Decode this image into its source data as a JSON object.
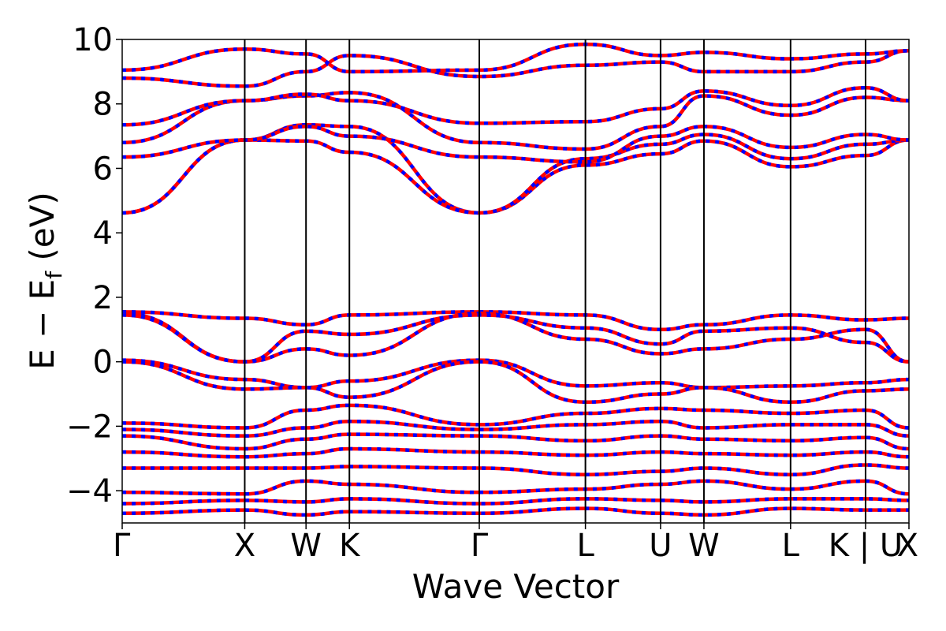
{
  "chart_data": {
    "type": "line",
    "title": "",
    "xlabel": "Wave Vector",
    "ylabel_main": "E − E",
    "ylabel_sub": "f",
    "ylabel_unit": " (eV)",
    "ylim": [
      -5,
      10
    ],
    "yticks": [
      -4,
      -2,
      0,
      2,
      4,
      6,
      8,
      10
    ],
    "ytick_labels": [
      "−4",
      "−2",
      "0",
      "2",
      "4",
      "6",
      "8",
      "10"
    ],
    "grid": false,
    "legend": "none",
    "colors": {
      "primary": "#ff0000",
      "secondary": "#0000ff",
      "frame": "#000000"
    },
    "kpath": [
      {
        "label": "Γ",
        "x": 0.0
      },
      {
        "label": "X",
        "x": 1.0
      },
      {
        "label": "W",
        "x": 1.5
      },
      {
        "label": "K",
        "x": 1.854
      },
      {
        "label": "Γ",
        "x": 2.914
      },
      {
        "label": "L",
        "x": 3.78
      },
      {
        "label": "U",
        "x": 4.393
      },
      {
        "label": "W",
        "x": 4.747
      },
      {
        "label": "L",
        "x": 5.454
      },
      {
        "label": "K | U",
        "x": 6.066
      },
      {
        "label": "X",
        "x": 6.42
      }
    ],
    "series": [
      {
        "values": [
          [
            0,
            4.62
          ],
          [
            1,
            6.88
          ],
          [
            1.5,
            7.35
          ],
          [
            1.854,
            7.3
          ],
          [
            2.914,
            4.62
          ],
          [
            3.78,
            6.1
          ],
          [
            4.393,
            6.45
          ],
          [
            4.747,
            6.85
          ],
          [
            5.454,
            6.05
          ],
          [
            6.066,
            6.4
          ],
          [
            6.42,
            6.88
          ]
        ]
      },
      {
        "values": [
          [
            0,
            4.62
          ],
          [
            1,
            6.88
          ],
          [
            1.5,
            6.85
          ],
          [
            1.854,
            6.5
          ],
          [
            2.914,
            4.62
          ],
          [
            3.78,
            6.3
          ],
          [
            4.393,
            6.75
          ],
          [
            4.747,
            7.05
          ],
          [
            5.454,
            6.3
          ],
          [
            6.066,
            6.75
          ],
          [
            6.42,
            6.88
          ]
        ]
      },
      {
        "values": [
          [
            0,
            6.35
          ],
          [
            1,
            6.88
          ],
          [
            1.5,
            7.3
          ],
          [
            1.854,
            7.0
          ],
          [
            2.914,
            6.35
          ],
          [
            3.78,
            6.2
          ],
          [
            4.393,
            7.0
          ],
          [
            4.747,
            7.3
          ],
          [
            5.454,
            6.65
          ],
          [
            6.066,
            7.05
          ],
          [
            6.42,
            6.88
          ]
        ]
      },
      {
        "values": [
          [
            0,
            6.8
          ],
          [
            1,
            8.1
          ],
          [
            1.5,
            8.25
          ],
          [
            1.854,
            8.35
          ],
          [
            2.914,
            6.8
          ],
          [
            3.78,
            6.6
          ],
          [
            4.393,
            7.3
          ],
          [
            4.747,
            8.25
          ],
          [
            5.454,
            7.65
          ],
          [
            6.066,
            8.2
          ],
          [
            6.42,
            8.1
          ]
        ]
      },
      {
        "values": [
          [
            0,
            7.35
          ],
          [
            1,
            8.1
          ],
          [
            1.5,
            8.3
          ],
          [
            1.854,
            8.1
          ],
          [
            2.914,
            7.4
          ],
          [
            3.78,
            7.45
          ],
          [
            4.393,
            7.85
          ],
          [
            4.747,
            8.4
          ],
          [
            5.454,
            7.95
          ],
          [
            6.066,
            8.5
          ],
          [
            6.42,
            8.1
          ]
        ]
      },
      {
        "values": [
          [
            0,
            8.8
          ],
          [
            1,
            8.55
          ],
          [
            1.5,
            9.0
          ],
          [
            1.854,
            9.5
          ],
          [
            2.914,
            8.85
          ],
          [
            3.78,
            9.2
          ],
          [
            4.393,
            9.3
          ],
          [
            4.747,
            9.0
          ],
          [
            5.454,
            9.0
          ],
          [
            6.066,
            9.3
          ],
          [
            6.42,
            9.65
          ]
        ]
      },
      {
        "values": [
          [
            0,
            9.05
          ],
          [
            1,
            9.7
          ],
          [
            1.5,
            9.55
          ],
          [
            1.854,
            9.0
          ],
          [
            2.914,
            9.05
          ],
          [
            3.78,
            9.85
          ],
          [
            4.393,
            9.5
          ],
          [
            4.747,
            9.6
          ],
          [
            5.454,
            9.4
          ],
          [
            6.066,
            9.55
          ],
          [
            6.42,
            9.65
          ]
        ]
      },
      {
        "values": [
          [
            0,
            1.55
          ],
          [
            1,
            1.35
          ],
          [
            1.5,
            1.15
          ],
          [
            1.854,
            1.45
          ],
          [
            2.914,
            1.55
          ],
          [
            3.78,
            1.45
          ],
          [
            4.393,
            1.0
          ],
          [
            4.747,
            1.15
          ],
          [
            5.454,
            1.45
          ],
          [
            6.066,
            1.3
          ],
          [
            6.42,
            1.35
          ]
        ]
      },
      {
        "values": [
          [
            0,
            1.5
          ],
          [
            1,
            0.0
          ],
          [
            1.5,
            0.4
          ],
          [
            1.854,
            0.2
          ],
          [
            2.914,
            1.5
          ],
          [
            3.78,
            0.7
          ],
          [
            4.393,
            0.25
          ],
          [
            4.747,
            0.4
          ],
          [
            5.454,
            0.7
          ],
          [
            6.066,
            1.0
          ],
          [
            6.42,
            0.0
          ]
        ]
      },
      {
        "values": [
          [
            0,
            1.45
          ],
          [
            1,
            0.0
          ],
          [
            1.5,
            0.95
          ],
          [
            1.854,
            0.85
          ],
          [
            2.914,
            1.45
          ],
          [
            3.78,
            1.05
          ],
          [
            4.393,
            0.55
          ],
          [
            4.747,
            0.95
          ],
          [
            5.454,
            1.05
          ],
          [
            6.066,
            0.6
          ],
          [
            6.42,
            0.0
          ]
        ]
      },
      {
        "values": [
          [
            0,
            0.05
          ],
          [
            1,
            -0.55
          ],
          [
            1.5,
            -0.8
          ],
          [
            1.854,
            -0.6
          ],
          [
            2.914,
            0.05
          ],
          [
            3.78,
            -0.75
          ],
          [
            4.393,
            -0.65
          ],
          [
            4.747,
            -0.8
          ],
          [
            5.454,
            -0.75
          ],
          [
            6.066,
            -0.65
          ],
          [
            6.42,
            -0.55
          ]
        ]
      },
      {
        "values": [
          [
            0,
            0.0
          ],
          [
            1,
            -0.85
          ],
          [
            1.5,
            -0.8
          ],
          [
            1.854,
            -1.1
          ],
          [
            2.914,
            0.0
          ],
          [
            3.78,
            -1.25
          ],
          [
            4.393,
            -1.0
          ],
          [
            4.747,
            -0.8
          ],
          [
            5.454,
            -1.25
          ],
          [
            6.066,
            -0.9
          ],
          [
            6.42,
            -0.85
          ]
        ]
      },
      {
        "values": [
          [
            0,
            -1.9
          ],
          [
            1,
            -2.05
          ],
          [
            1.5,
            -1.5
          ],
          [
            1.854,
            -1.35
          ],
          [
            2.914,
            -1.95
          ],
          [
            3.78,
            -1.6
          ],
          [
            4.393,
            -1.45
          ],
          [
            4.747,
            -1.5
          ],
          [
            5.454,
            -1.6
          ],
          [
            6.066,
            -1.5
          ],
          [
            6.42,
            -2.05
          ]
        ]
      },
      {
        "values": [
          [
            0,
            -2.1
          ],
          [
            1,
            -2.3
          ],
          [
            1.5,
            -2.05
          ],
          [
            1.854,
            -1.85
          ],
          [
            2.914,
            -2.1
          ],
          [
            3.78,
            -1.95
          ],
          [
            4.393,
            -1.85
          ],
          [
            4.747,
            -2.05
          ],
          [
            5.454,
            -1.95
          ],
          [
            6.066,
            -1.95
          ],
          [
            6.42,
            -2.3
          ]
        ]
      },
      {
        "values": [
          [
            0,
            -2.3
          ],
          [
            1,
            -2.7
          ],
          [
            1.5,
            -2.4
          ],
          [
            1.854,
            -2.25
          ],
          [
            2.914,
            -2.3
          ],
          [
            3.78,
            -2.45
          ],
          [
            4.393,
            -2.3
          ],
          [
            4.747,
            -2.4
          ],
          [
            5.454,
            -2.45
          ],
          [
            6.066,
            -2.35
          ],
          [
            6.42,
            -2.7
          ]
        ]
      },
      {
        "values": [
          [
            0,
            -2.8
          ],
          [
            1,
            -2.95
          ],
          [
            1.5,
            -2.85
          ],
          [
            1.854,
            -2.7
          ],
          [
            2.914,
            -2.8
          ],
          [
            3.78,
            -2.9
          ],
          [
            4.393,
            -2.8
          ],
          [
            4.747,
            -2.85
          ],
          [
            5.454,
            -2.9
          ],
          [
            6.066,
            -2.8
          ],
          [
            6.42,
            -2.95
          ]
        ]
      },
      {
        "values": [
          [
            0,
            -3.3
          ],
          [
            1,
            -3.3
          ],
          [
            1.5,
            -3.3
          ],
          [
            1.854,
            -3.25
          ],
          [
            2.914,
            -3.3
          ],
          [
            3.78,
            -3.5
          ],
          [
            4.393,
            -3.4
          ],
          [
            4.747,
            -3.3
          ],
          [
            5.454,
            -3.5
          ],
          [
            6.066,
            -3.2
          ],
          [
            6.42,
            -3.3
          ]
        ]
      },
      {
        "values": [
          [
            0,
            -4.05
          ],
          [
            1,
            -4.1
          ],
          [
            1.5,
            -3.7
          ],
          [
            1.854,
            -3.8
          ],
          [
            2.914,
            -4.05
          ],
          [
            3.78,
            -3.95
          ],
          [
            4.393,
            -3.8
          ],
          [
            4.747,
            -3.7
          ],
          [
            5.454,
            -3.95
          ],
          [
            6.066,
            -3.7
          ],
          [
            6.42,
            -4.1
          ]
        ]
      },
      {
        "values": [
          [
            0,
            -4.4
          ],
          [
            1,
            -4.3
          ],
          [
            1.5,
            -4.35
          ],
          [
            1.854,
            -4.25
          ],
          [
            2.914,
            -4.4
          ],
          [
            3.78,
            -4.25
          ],
          [
            4.393,
            -4.3
          ],
          [
            4.747,
            -4.35
          ],
          [
            5.454,
            -4.25
          ],
          [
            6.066,
            -4.25
          ],
          [
            6.42,
            -4.3
          ]
        ]
      },
      {
        "values": [
          [
            0,
            -4.7
          ],
          [
            1,
            -4.6
          ],
          [
            1.5,
            -4.75
          ],
          [
            1.854,
            -4.65
          ],
          [
            2.914,
            -4.7
          ],
          [
            3.78,
            -4.55
          ],
          [
            4.393,
            -4.7
          ],
          [
            4.747,
            -4.75
          ],
          [
            5.454,
            -4.55
          ],
          [
            6.066,
            -4.6
          ],
          [
            6.42,
            -4.6
          ]
        ]
      }
    ]
  }
}
